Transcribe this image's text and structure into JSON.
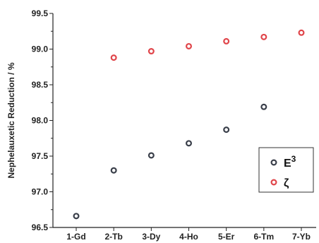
{
  "chart_data": {
    "type": "scatter",
    "title": "",
    "xlabel": "",
    "ylabel": "Nephelauxetic Reduction / %",
    "categories": [
      "1-Gd",
      "2-Tb",
      "3-Dy",
      "4-Ho",
      "5-Er",
      "6-Tm",
      "7-Yb"
    ],
    "ylim": [
      96.5,
      99.5
    ],
    "yticks": [
      "96.5",
      "97.0",
      "97.5",
      "98.0",
      "98.5",
      "99.0",
      "99.5"
    ],
    "grid": false,
    "legend_position": "bottom-right",
    "series": [
      {
        "name": "E",
        "name_superscript": "3",
        "color": "#3a3f4a",
        "marker": "open-circle",
        "values": [
          96.66,
          97.3,
          97.51,
          97.68,
          97.87,
          98.19,
          null
        ]
      },
      {
        "name": "ζ",
        "color": "#e0454a",
        "marker": "open-circle",
        "values": [
          null,
          98.88,
          98.97,
          99.04,
          99.11,
          99.17,
          99.23
        ]
      }
    ]
  }
}
